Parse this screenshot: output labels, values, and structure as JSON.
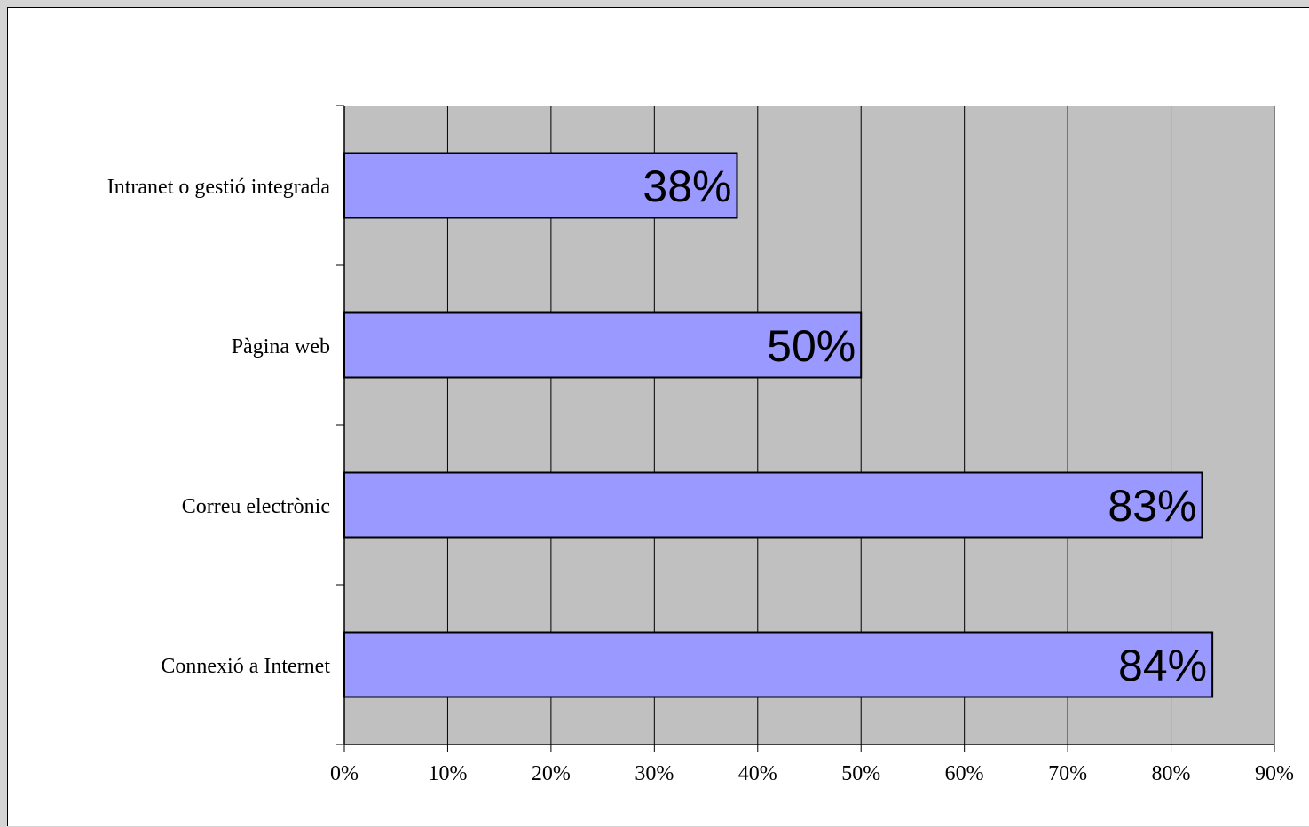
{
  "chart_data": {
    "type": "bar",
    "orientation": "horizontal",
    "categories": [
      "Intranet o gestió integrada",
      "Pàgina web",
      "Correu electrònic",
      "Connexió a Internet"
    ],
    "values": [
      38,
      50,
      83,
      84
    ],
    "data_labels": [
      "38%",
      "50%",
      "83%",
      "84%"
    ],
    "x_ticks": [
      "0%",
      "10%",
      "20%",
      "30%",
      "40%",
      "50%",
      "60%",
      "70%",
      "80%",
      "90%"
    ],
    "xlim": [
      0,
      90
    ],
    "title": "",
    "xlabel": "",
    "ylabel": "",
    "grid": true,
    "legend": "none",
    "colors": {
      "plot_area": "#c0c0c0",
      "bar_fill": "#9999ff",
      "bar_stroke": "#000000",
      "gridline": "#000000"
    }
  }
}
